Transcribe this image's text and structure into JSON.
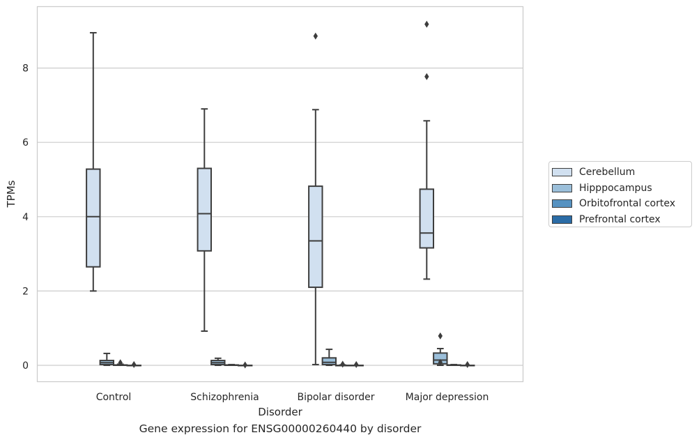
{
  "chart_data": {
    "type": "box",
    "title": "",
    "caption": "Gene expression for ENSG00000260440 by disorder",
    "xlabel": "Disorder",
    "ylabel": "TPMs",
    "ylim": [
      -0.45,
      9.7
    ],
    "yticks": [
      0,
      2,
      4,
      6,
      8
    ],
    "grid": "horizontal",
    "legend_position": "right",
    "categories": [
      "Control",
      "Schizophrenia",
      "Bipolar disorder",
      "Major depression"
    ],
    "series": [
      {
        "name": "Cerebellum",
        "color": "#d1e0f0",
        "boxes": [
          {
            "whislo": 2.0,
            "q1": 2.65,
            "med": 4.0,
            "q3": 5.28,
            "whishi": 8.95,
            "fliers": []
          },
          {
            "whislo": 0.92,
            "q1": 3.08,
            "med": 4.08,
            "q3": 5.3,
            "whishi": 6.9,
            "fliers": []
          },
          {
            "whislo": 0.02,
            "q1": 2.1,
            "med": 3.35,
            "q3": 4.82,
            "whishi": 6.88,
            "fliers": [
              8.86
            ]
          },
          {
            "whislo": 2.32,
            "q1": 3.16,
            "med": 3.56,
            "q3": 4.74,
            "whishi": 6.58,
            "fliers": [
              7.77,
              9.18
            ]
          }
        ]
      },
      {
        "name": "Hipppocampus",
        "color": "#9bbfda",
        "boxes": [
          {
            "whislo": 0.0,
            "q1": 0.02,
            "med": 0.07,
            "q3": 0.13,
            "whishi": 0.32,
            "fliers": []
          },
          {
            "whislo": 0.0,
            "q1": 0.02,
            "med": 0.07,
            "q3": 0.13,
            "whishi": 0.19,
            "fliers": []
          },
          {
            "whislo": 0.0,
            "q1": 0.02,
            "med": 0.08,
            "q3": 0.2,
            "whishi": 0.43,
            "fliers": []
          },
          {
            "whislo": 0.0,
            "q1": 0.04,
            "med": 0.14,
            "q3": 0.33,
            "whishi": 0.45,
            "fliers": [
              0.08,
              0.79
            ]
          }
        ]
      },
      {
        "name": "Orbitofrontal cortex",
        "color": "#5692c1",
        "boxes": [
          {
            "whislo": 0.0,
            "q1": 0.0,
            "med": 0.0,
            "q3": 0.01,
            "whishi": 0.03,
            "fliers": [
              0.07
            ]
          },
          {
            "whislo": 0.0,
            "q1": 0.0,
            "med": 0.0,
            "q3": 0.01,
            "whishi": 0.02,
            "fliers": []
          },
          {
            "whislo": 0.0,
            "q1": 0.0,
            "med": 0.0,
            "q3": 0.0,
            "whishi": 0.01,
            "fliers": [
              0.03
            ]
          },
          {
            "whislo": 0.0,
            "q1": 0.0,
            "med": 0.0,
            "q3": 0.01,
            "whishi": 0.02,
            "fliers": []
          }
        ]
      },
      {
        "name": "Prefrontal cortex",
        "color": "#2b6ca6",
        "boxes": [
          {
            "whislo": 0.0,
            "q1": 0.0,
            "med": 0.0,
            "q3": 0.0,
            "whishi": 0.0,
            "fliers": [
              0.02
            ]
          },
          {
            "whislo": 0.0,
            "q1": 0.0,
            "med": 0.0,
            "q3": 0.0,
            "whishi": 0.0,
            "fliers": [
              0.01
            ]
          },
          {
            "whislo": 0.0,
            "q1": 0.0,
            "med": 0.0,
            "q3": 0.0,
            "whishi": 0.0,
            "fliers": [
              0.02
            ]
          },
          {
            "whislo": 0.0,
            "q1": 0.0,
            "med": 0.0,
            "q3": 0.0,
            "whishi": 0.0,
            "fliers": [
              0.02
            ]
          }
        ]
      }
    ]
  }
}
